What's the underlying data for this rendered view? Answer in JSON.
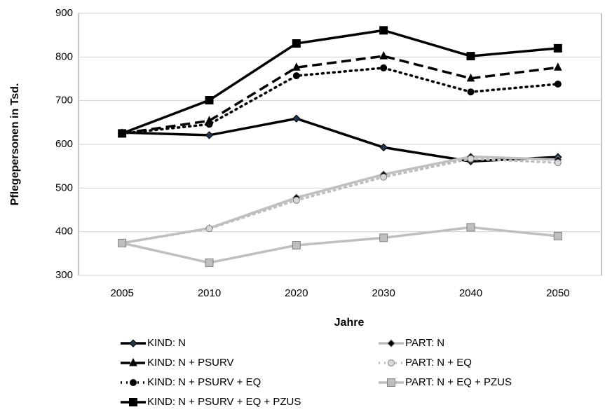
{
  "chart_data": {
    "type": "line",
    "x_label": "Jahre",
    "y_label": "Pflegepersonen in Tsd.",
    "categories": [
      "2005",
      "2010",
      "2020",
      "2030",
      "2040",
      "2050"
    ],
    "ylim": [
      300,
      900
    ],
    "yticks": [
      300,
      400,
      500,
      600,
      700,
      800,
      900
    ],
    "grid": true,
    "series": [
      {
        "name": "KIND: N",
        "color": "#000000",
        "marker": "diamond",
        "marker_color": "#1f3550",
        "dash": "solid",
        "values": [
          627,
          621,
          659,
          593,
          561,
          571
        ]
      },
      {
        "name": "PART: N",
        "color": "#bfbfbf",
        "marker": "diamond",
        "marker_color": "#000000",
        "dash": "solid",
        "values": [
          374,
          408,
          478,
          531,
          572,
          565
        ]
      },
      {
        "name": "KIND: N + PSURV",
        "color": "#000000",
        "marker": "triangle",
        "marker_color": "#000000",
        "dash": "dashed",
        "values": [
          625,
          654,
          776,
          802,
          751,
          776
        ]
      },
      {
        "name": "PART: N + EQ",
        "color": "#bfbfbf",
        "marker": "circle",
        "marker_color": "#d9d9d9",
        "dash": "dotted",
        "values": [
          374,
          407,
          472,
          525,
          567,
          558
        ]
      },
      {
        "name": "KIND: N + PSURV + EQ",
        "color": "#000000",
        "marker": "circle",
        "marker_color": "#000000",
        "dash": "dotted",
        "values": [
          625,
          646,
          757,
          775,
          720,
          738
        ]
      },
      {
        "name": "PART: N + EQ + PZUS",
        "color": "#bfbfbf",
        "marker": "square",
        "marker_color": "#bfbfbf",
        "dash": "solid",
        "values": [
          374,
          329,
          369,
          386,
          410,
          390
        ]
      },
      {
        "name": "KIND: N + PSURV + EQ + PZUS",
        "color": "#000000",
        "marker": "square",
        "marker_color": "#000000",
        "dash": "solid",
        "values": [
          625,
          701,
          831,
          861,
          802,
          820
        ]
      }
    ]
  }
}
